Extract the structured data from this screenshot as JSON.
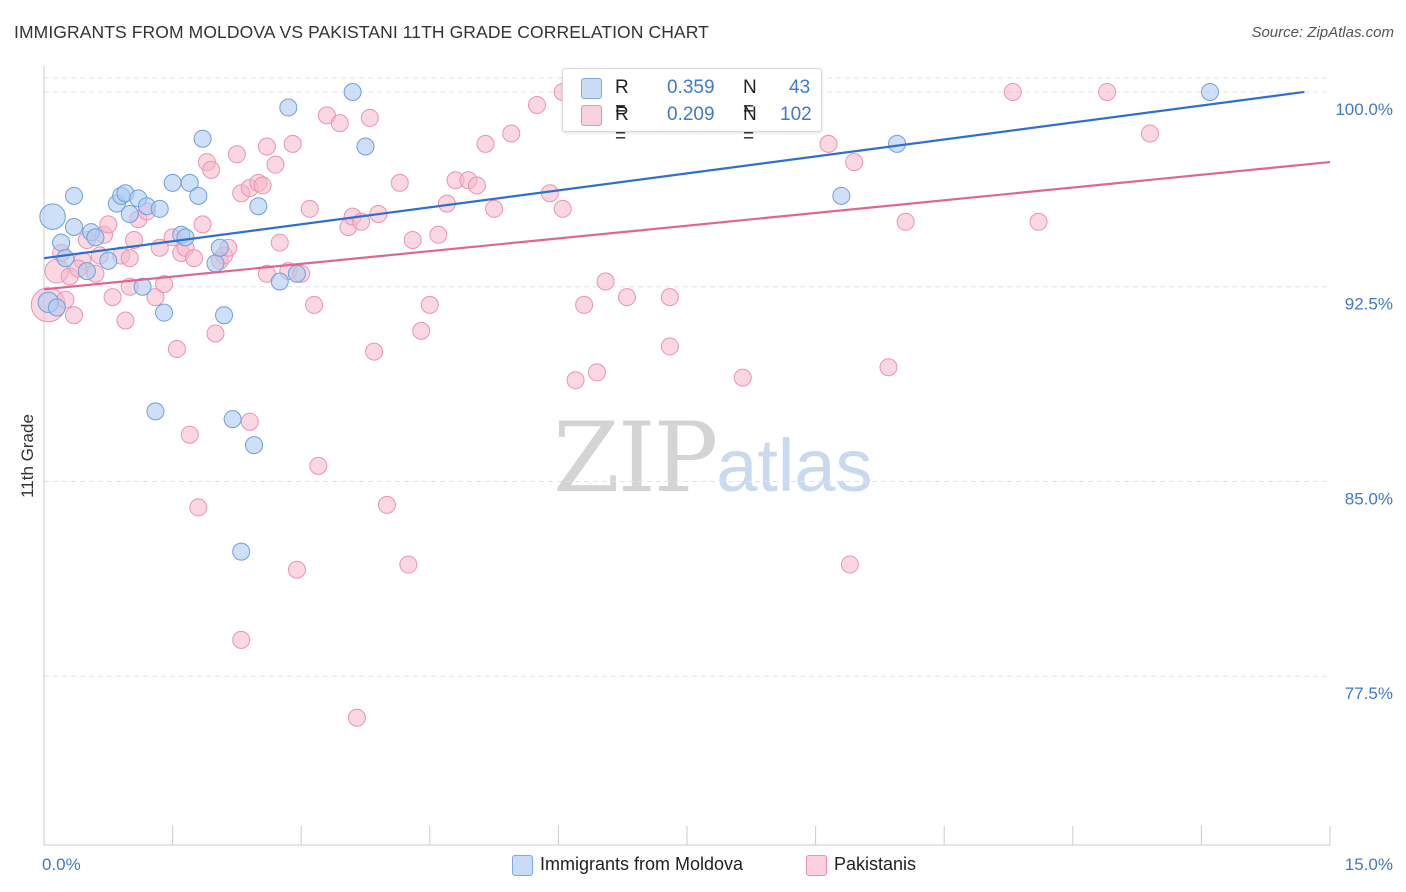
{
  "header": {
    "title": "IMMIGRANTS FROM MOLDOVA VS PAKISTANI 11TH GRADE CORRELATION CHART",
    "source": "Source: ZipAtlas.com"
  },
  "watermark": {
    "zip": "ZIP",
    "atlas": "atlas"
  },
  "stats": {
    "rows": [
      {
        "r_label": "R = ",
        "r_value": "0.359",
        "n_label": "N = ",
        "n_value": "43",
        "color": "#aecbf2"
      },
      {
        "r_label": "R = ",
        "r_value": "0.209",
        "n_label": "N = ",
        "n_value": "102",
        "color": "#f7b6c9"
      }
    ]
  },
  "legend": {
    "items": [
      {
        "label": "Immigrants from Moldova",
        "color": "#aecbf2"
      },
      {
        "label": "Pakistanis",
        "color": "#f7b6c9"
      }
    ]
  },
  "chart_data": {
    "type": "scatter",
    "title": "IMMIGRANTS FROM MOLDOVA VS PAKISTANI 11TH GRADE CORRELATION CHART",
    "xlabel": "",
    "ylabel": "11th Grade",
    "xlim": [
      0,
      15
    ],
    "ylim": [
      71.0,
      101.0
    ],
    "x_ticks": [
      {
        "value": 0,
        "label": "0.0%"
      },
      {
        "value": 15,
        "label": "15.0%"
      }
    ],
    "x_minor_ticks": [
      1.5,
      3.0,
      4.5,
      6.0,
      7.5,
      9.0,
      10.5,
      12.0,
      13.5
    ],
    "y_ticks": [
      {
        "value": 77.5,
        "label": "77.5%"
      },
      {
        "value": 85.0,
        "label": "85.0%"
      },
      {
        "value": 92.5,
        "label": "92.5%"
      },
      {
        "value": 100.0,
        "label": "100.0%"
      }
    ],
    "grid": "horizontal dashed",
    "colors": {
      "moldova_fill": "#aecbf2",
      "moldova_line": "#2f6fcf",
      "pakistani_fill": "#f7b6c9",
      "pakistani_line": "#e0668f",
      "tick_label": "#3f79c9"
    },
    "series": [
      {
        "name": "Immigrants from Moldova",
        "R": 0.359,
        "N": 43,
        "trend": {
          "x": [
            0,
            14.7
          ],
          "y": [
            93.6,
            100.0
          ]
        },
        "points": [
          [
            0.1,
            95.2,
            1.5
          ],
          [
            0.2,
            94.2,
            1
          ],
          [
            0.35,
            96.0,
            1
          ],
          [
            0.35,
            94.8,
            1
          ],
          [
            0.25,
            93.6,
            1
          ],
          [
            0.5,
            93.1,
            1
          ],
          [
            0.55,
            94.6,
            1
          ],
          [
            0.6,
            94.4,
            1
          ],
          [
            0.75,
            93.5,
            1
          ],
          [
            0.85,
            95.7,
            1
          ],
          [
            0.9,
            96.0,
            1
          ],
          [
            0.95,
            96.1,
            1
          ],
          [
            1.0,
            95.3,
            1
          ],
          [
            1.1,
            95.9,
            1
          ],
          [
            1.2,
            95.6,
            1
          ],
          [
            1.35,
            95.5,
            1
          ],
          [
            1.15,
            92.5,
            1
          ],
          [
            1.4,
            91.5,
            1
          ],
          [
            1.5,
            96.5,
            1
          ],
          [
            1.6,
            94.5,
            1
          ],
          [
            1.65,
            94.4,
            1
          ],
          [
            1.7,
            96.5,
            1
          ],
          [
            1.8,
            96.0,
            1
          ],
          [
            1.85,
            98.2,
            1
          ],
          [
            2.0,
            93.4,
            1
          ],
          [
            2.05,
            94.0,
            1
          ],
          [
            2.1,
            91.4,
            1
          ],
          [
            1.3,
            87.7,
            1
          ],
          [
            2.2,
            87.4,
            1
          ],
          [
            2.45,
            86.4,
            1
          ],
          [
            2.3,
            82.3,
            1
          ],
          [
            2.5,
            95.6,
            1
          ],
          [
            2.75,
            92.7,
            1
          ],
          [
            2.85,
            99.4,
            1
          ],
          [
            2.95,
            93.0,
            1
          ],
          [
            3.6,
            100.0,
            1
          ],
          [
            3.75,
            97.9,
            1
          ],
          [
            9.3,
            96.0,
            1
          ],
          [
            9.95,
            98.0,
            1
          ],
          [
            13.6,
            100.0,
            1
          ],
          [
            7.9,
            99.9,
            1
          ],
          [
            0.05,
            91.9,
            1.2
          ],
          [
            0.15,
            91.7,
            1
          ]
        ]
      },
      {
        "name": "Pakistanis",
        "R": 0.209,
        "N": 102,
        "trend": {
          "x": [
            0,
            15
          ],
          "y": [
            92.4,
            97.3
          ]
        },
        "points": [
          [
            0.05,
            91.8,
            2.0
          ],
          [
            0.15,
            93.1,
            1.4
          ],
          [
            0.2,
            93.8,
            1
          ],
          [
            0.3,
            92.9,
            1
          ],
          [
            0.35,
            91.4,
            1
          ],
          [
            0.45,
            93.5,
            1
          ],
          [
            0.5,
            94.3,
            1
          ],
          [
            0.6,
            93.0,
            1
          ],
          [
            0.65,
            93.7,
            1
          ],
          [
            0.7,
            94.5,
            1
          ],
          [
            0.75,
            94.9,
            1
          ],
          [
            0.8,
            92.1,
            1
          ],
          [
            0.9,
            93.7,
            1
          ],
          [
            0.95,
            91.2,
            1
          ],
          [
            1.0,
            93.6,
            1
          ],
          [
            1.05,
            94.3,
            1
          ],
          [
            1.1,
            95.1,
            1
          ],
          [
            1.2,
            95.4,
            1
          ],
          [
            1.3,
            92.1,
            1
          ],
          [
            1.35,
            94.0,
            1
          ],
          [
            1.4,
            92.6,
            1
          ],
          [
            1.5,
            94.4,
            1
          ],
          [
            1.6,
            93.8,
            1
          ],
          [
            1.7,
            86.8,
            1
          ],
          [
            1.65,
            94.0,
            1
          ],
          [
            1.75,
            93.6,
            1
          ],
          [
            1.85,
            94.9,
            1
          ],
          [
            1.9,
            97.3,
            1
          ],
          [
            1.95,
            97.0,
            1
          ],
          [
            2.0,
            90.7,
            1
          ],
          [
            2.05,
            93.5,
            1
          ],
          [
            2.1,
            93.7,
            1
          ],
          [
            2.15,
            94.0,
            1
          ],
          [
            2.25,
            97.6,
            1
          ],
          [
            2.3,
            96.1,
            1
          ],
          [
            2.4,
            96.3,
            1
          ],
          [
            2.5,
            96.5,
            1
          ],
          [
            2.55,
            96.4,
            1
          ],
          [
            2.6,
            97.9,
            1
          ],
          [
            2.7,
            97.2,
            1
          ],
          [
            2.75,
            94.2,
            1
          ],
          [
            2.85,
            93.1,
            1
          ],
          [
            2.9,
            98.0,
            1
          ],
          [
            3.0,
            93.0,
            1
          ],
          [
            3.1,
            95.5,
            1
          ],
          [
            3.15,
            91.8,
            1
          ],
          [
            3.3,
            99.1,
            1
          ],
          [
            3.45,
            98.8,
            1
          ],
          [
            3.55,
            94.8,
            1
          ],
          [
            3.6,
            95.2,
            1
          ],
          [
            3.7,
            95.0,
            1
          ],
          [
            3.8,
            99.0,
            1
          ],
          [
            3.85,
            90.0,
            1
          ],
          [
            3.9,
            95.3,
            1
          ],
          [
            4.15,
            96.5,
            1
          ],
          [
            4.3,
            94.3,
            1
          ],
          [
            4.4,
            90.8,
            1
          ],
          [
            4.5,
            91.8,
            1
          ],
          [
            4.6,
            94.5,
            1
          ],
          [
            4.7,
            95.7,
            1
          ],
          [
            4.8,
            96.6,
            1
          ],
          [
            4.95,
            96.6,
            1
          ],
          [
            5.05,
            96.4,
            1
          ],
          [
            5.15,
            98.0,
            1
          ],
          [
            5.25,
            95.5,
            1
          ],
          [
            5.45,
            98.4,
            1
          ],
          [
            5.75,
            99.5,
            1
          ],
          [
            5.9,
            96.1,
            1
          ],
          [
            6.05,
            95.5,
            1
          ],
          [
            6.05,
            100.0,
            1
          ],
          [
            6.2,
            88.9,
            1
          ],
          [
            6.3,
            91.8,
            1
          ],
          [
            6.45,
            89.2,
            1
          ],
          [
            6.55,
            92.7,
            1
          ],
          [
            6.8,
            92.1,
            1
          ],
          [
            7.3,
            92.1,
            1
          ],
          [
            7.3,
            90.2,
            1
          ],
          [
            8.15,
            89.0,
            1
          ],
          [
            8.35,
            100.0,
            1
          ],
          [
            9.15,
            98.0,
            1
          ],
          [
            9.45,
            97.3,
            1
          ],
          [
            9.85,
            89.4,
            1
          ],
          [
            10.05,
            95.0,
            1
          ],
          [
            11.3,
            100.0,
            1
          ],
          [
            11.6,
            95.0,
            1
          ],
          [
            12.4,
            100.0,
            1
          ],
          [
            12.9,
            98.4,
            1
          ],
          [
            1.8,
            84.0,
            1
          ],
          [
            2.4,
            87.3,
            1
          ],
          [
            3.2,
            85.6,
            1
          ],
          [
            2.95,
            81.6,
            1
          ],
          [
            4.0,
            84.1,
            1
          ],
          [
            4.25,
            81.8,
            1
          ],
          [
            2.3,
            78.9,
            1
          ],
          [
            3.65,
            75.9,
            1
          ],
          [
            9.4,
            81.8,
            1
          ],
          [
            1.55,
            90.1,
            1
          ],
          [
            0.25,
            92.0,
            1
          ],
          [
            2.6,
            93.0,
            1
          ],
          [
            1.0,
            92.5,
            1
          ],
          [
            0.4,
            93.2,
            1
          ],
          [
            6.5,
            99.9,
            1
          ]
        ]
      }
    ]
  }
}
